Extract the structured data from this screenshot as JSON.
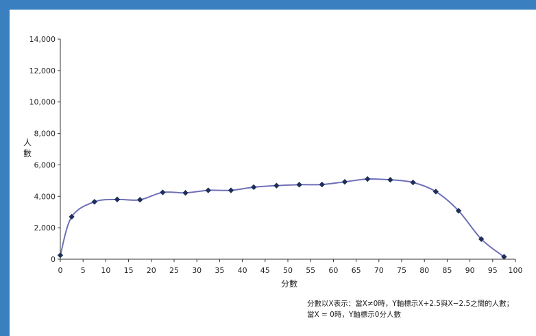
{
  "chart_data": {
    "type": "line",
    "x": [
      0,
      2.5,
      7.5,
      12.5,
      17.5,
      22.5,
      27.5,
      32.5,
      37.5,
      42.5,
      47.5,
      52.5,
      57.5,
      62.5,
      67.5,
      72.5,
      77.5,
      82.5,
      87.5,
      92.5,
      97.5
    ],
    "series": [
      {
        "values": [
          250,
          2700,
          3650,
          3800,
          3780,
          4250,
          4220,
          4380,
          4380,
          4580,
          4680,
          4740,
          4750,
          4920,
          5100,
          5050,
          4880,
          4300,
          3080,
          1280,
          150
        ]
      }
    ],
    "title": "",
    "xlabel": "分數",
    "ylabel": "人數",
    "xlim": [
      0,
      100
    ],
    "ylim": [
      0,
      14000
    ],
    "xticks": [
      "0",
      "5",
      "10",
      "15",
      "20",
      "25",
      "30",
      "35",
      "40",
      "45",
      "50",
      "55",
      "60",
      "65",
      "70",
      "75",
      "80",
      "85",
      "90",
      "95",
      "100"
    ],
    "yticks": [
      "0",
      "2,000",
      "4,000",
      "6,000",
      "8,000",
      "10,000",
      "12,000",
      "14,000"
    ],
    "grid": false,
    "line_color": "#6f6fb8",
    "marker_color": "#1e2f5a",
    "note": [
      "分數以X表示：當X≠0時，Y軸標示X+2.5與X−2.5之間的人數；",
      "當X = 0時，Y軸標示0分人數"
    ]
  }
}
